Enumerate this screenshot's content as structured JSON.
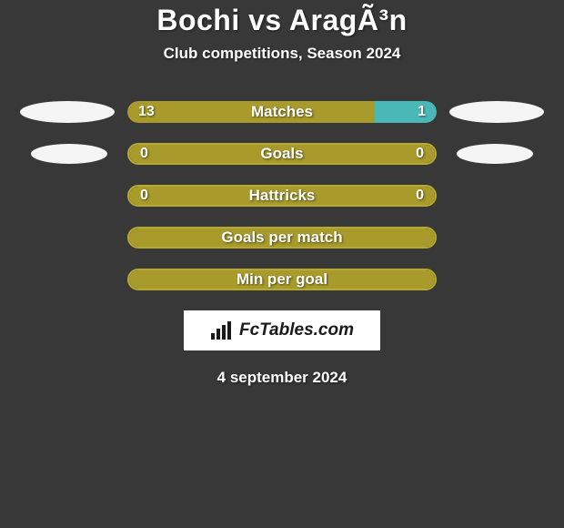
{
  "background_color": "#383838",
  "colors": {
    "olive": "#a89b2c",
    "olive_border": "#b5a930",
    "teal": "#4bb8b8",
    "white": "#f5f5f5",
    "badge_bg": "#ffffff",
    "text": "#ffffff"
  },
  "header": {
    "title": "Bochi vs AragÃ³n",
    "subtitle": "Club competitions, Season 2024"
  },
  "rows": [
    {
      "label": "Matches",
      "left_val": "13",
      "right_val": "1",
      "left_pct": 80,
      "right_pct": 20,
      "left_color": "#a89b2c",
      "right_color": "#4bb8b8",
      "show_markers": "outer"
    },
    {
      "label": "Goals",
      "left_val": "0",
      "right_val": "0",
      "left_pct": 50,
      "right_pct": 50,
      "left_color": "#a89b2c",
      "right_color": "#a89b2c",
      "bordered": true,
      "border_color": "#b5a930",
      "show_markers": "inner"
    },
    {
      "label": "Hattricks",
      "left_val": "0",
      "right_val": "0",
      "left_pct": 50,
      "right_pct": 50,
      "left_color": "#a89b2c",
      "right_color": "#a89b2c",
      "bordered": true,
      "border_color": "#b5a930",
      "show_markers": "none"
    },
    {
      "label": "Goals per match",
      "full": true,
      "full_color": "#a89b2c",
      "bordered": true,
      "border_color": "#b5a930",
      "show_markers": "none"
    },
    {
      "label": "Min per goal",
      "full": true,
      "full_color": "#a89b2c",
      "bordered": true,
      "border_color": "#b5a930",
      "show_markers": "none"
    }
  ],
  "badge": {
    "text": "FcTables.com"
  },
  "footer": {
    "date": "4 september 2024"
  }
}
